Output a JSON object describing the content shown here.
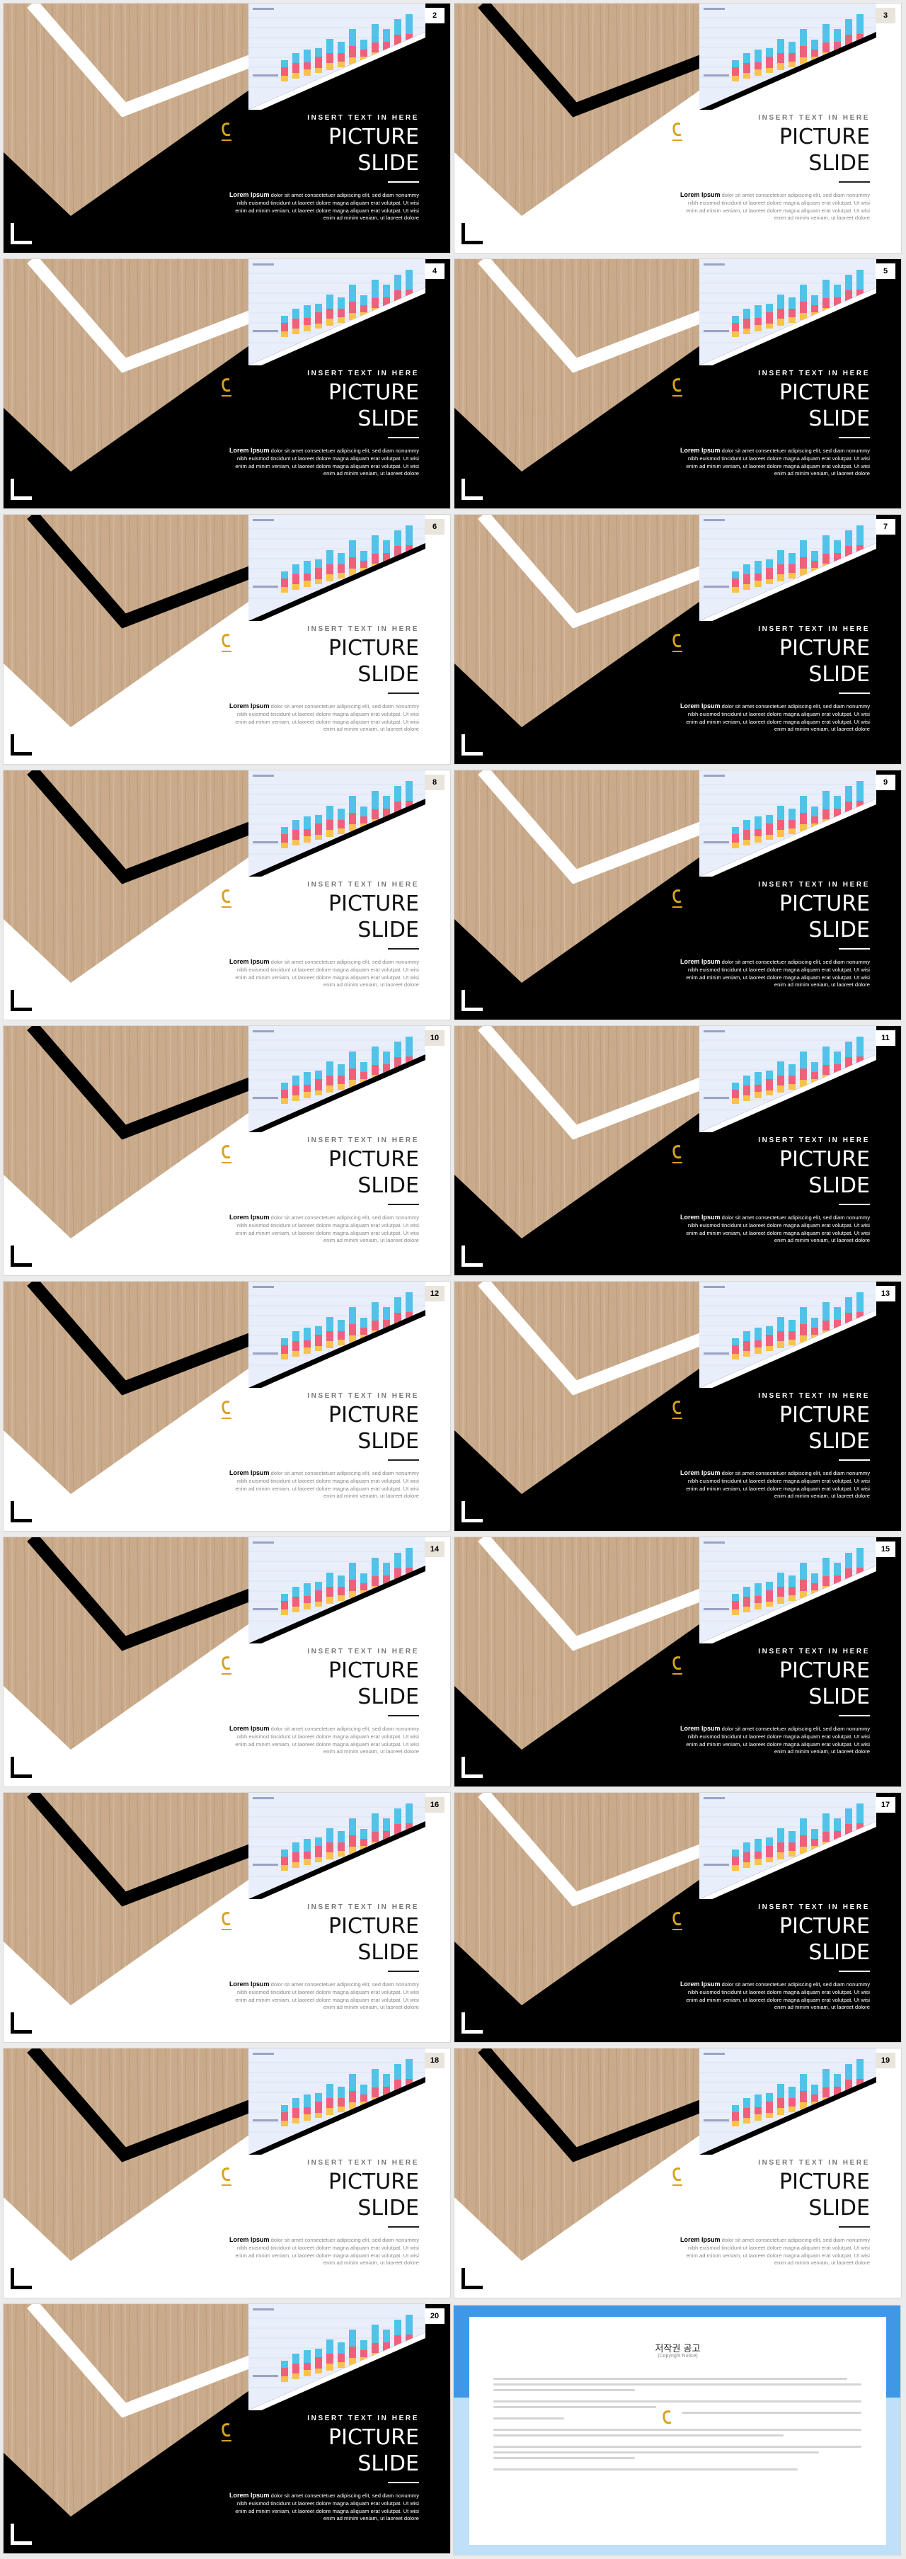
{
  "slides": [
    {
      "number": "2",
      "theme": "dark"
    },
    {
      "number": "3",
      "theme": "light"
    },
    {
      "number": "4",
      "theme": "dark"
    },
    {
      "number": "5",
      "theme": "dark"
    },
    {
      "number": "6",
      "theme": "light"
    },
    {
      "number": "7",
      "theme": "dark"
    },
    {
      "number": "8",
      "theme": "light"
    },
    {
      "number": "9",
      "theme": "dark"
    },
    {
      "number": "10",
      "theme": "light"
    },
    {
      "number": "11",
      "theme": "dark"
    },
    {
      "number": "12",
      "theme": "light"
    },
    {
      "number": "13",
      "theme": "dark"
    },
    {
      "number": "14",
      "theme": "light"
    },
    {
      "number": "15",
      "theme": "dark"
    },
    {
      "number": "16",
      "theme": "light"
    },
    {
      "number": "17",
      "theme": "dark"
    },
    {
      "number": "18",
      "theme": "light"
    },
    {
      "number": "19",
      "theme": "light"
    },
    {
      "number": "20",
      "theme": "dark"
    }
  ],
  "slide_text": {
    "kicker": "INSERT TEXT IN HERE",
    "title_line1": "PICTURE",
    "title_line2": "SLIDE",
    "body_lead": "Lorem Ipsum",
    "body": "dolor sit amet consectetuer adipiscing elit, sed diam nonummy nibh euismod tincidunt ut laoreet dolore magna aliquam erat volutpat. Ut wisi enim ad minim veniam, ut laoreet dolore magna aliquam erat volutpat. Ut wisi enim ad minim veniam, ut laoreet dolore"
  },
  "copyright": {
    "title": "저작권 공고",
    "subtitle": "(Copyright Notice)"
  },
  "colors": {
    "wood": "#c9ab8c",
    "dark_bg": "#000000",
    "light_bg": "#ffffff",
    "bar_blue": "#4fc3e8",
    "bar_pink": "#f0607a",
    "bar_yellow": "#f7c34e",
    "copyright_blue": "#3f97e6"
  }
}
